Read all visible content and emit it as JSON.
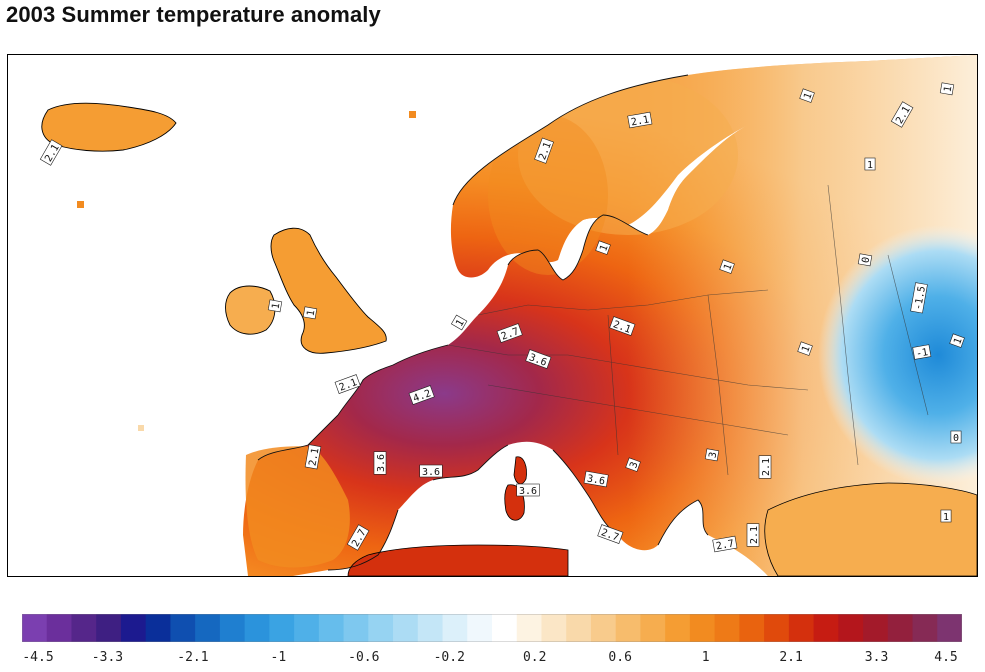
{
  "title": "2003 Summer temperature anomaly",
  "map": {
    "region": "Europe",
    "contour_labels": [
      "2.1",
      "2.1",
      "2.1",
      "1",
      "1",
      "1",
      "1",
      "1",
      "1",
      "2.7",
      "2.1",
      "3.6",
      "4.2",
      "2.1",
      "2.1",
      "3.6",
      "3.6",
      "3.6",
      "3.6",
      "2.7",
      "2.7",
      "3",
      "2.1",
      "3",
      "2.7",
      "2.1",
      "1",
      "1",
      "-1",
      "-1.5",
      "1",
      "0",
      "0",
      "1",
      "1",
      "2.1"
    ]
  },
  "colorbar": {
    "tick_labels": [
      "-4.5",
      "-3.3",
      "-2.1",
      "-1",
      "-0.6",
      "-0.2",
      "0.2",
      "0.6",
      "1",
      "2.1",
      "3.3",
      "4.5"
    ],
    "bin_colors": [
      "#7b3fb0",
      "#6b2f9c",
      "#55268a",
      "#3e1f82",
      "#1c1a8f",
      "#0a2f9a",
      "#0f4fb0",
      "#1568c0",
      "#1f7fd0",
      "#2b93dc",
      "#3aa3e3",
      "#4fb0e8",
      "#66bdec",
      "#7ec8ef",
      "#96d3f2",
      "#acdcf4",
      "#c4e6f7",
      "#dcf0fa",
      "#f0f8fd",
      "#ffffff",
      "#fdf3e2",
      "#fbe6c6",
      "#f9d9aa",
      "#f8cb8c",
      "#f7bc6c",
      "#f6ad4f",
      "#f59d33",
      "#f28b20",
      "#ee7a17",
      "#e9630f",
      "#e04a0c",
      "#d4300d",
      "#c61c12",
      "#b4161c",
      "#a31a2a",
      "#93203d",
      "#862a55",
      "#7d3470"
    ]
  }
}
